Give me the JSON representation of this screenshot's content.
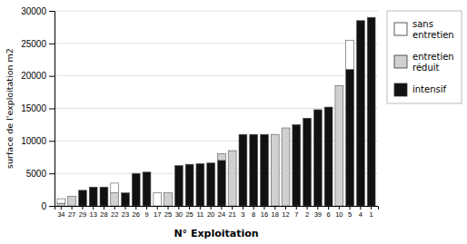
{
  "chart_data": {
    "type": "bar",
    "stacked": true,
    "categories": [
      "34",
      "27",
      "29",
      "13",
      "28",
      "22",
      "23",
      "26",
      "9",
      "17",
      "25",
      "30",
      "25",
      "11",
      "20",
      "24",
      "21",
      "3",
      "8",
      "16",
      "18",
      "12",
      "7",
      "2",
      "39",
      "6",
      "10",
      "5",
      "4",
      "1"
    ],
    "series": [
      {
        "name": "intensif",
        "color": "#111111",
        "values": [
          0,
          0,
          2400,
          2900,
          2900,
          0,
          2000,
          5000,
          5200,
          0,
          0,
          6200,
          6400,
          6500,
          6600,
          7000,
          0,
          11000,
          11000,
          11000,
          0,
          0,
          12500,
          13500,
          14800,
          15200,
          0,
          21000,
          28500,
          29000
        ]
      },
      {
        "name": "entretien\nréduit",
        "color": "#d0d0d0",
        "values": [
          400,
          1500,
          0,
          0,
          0,
          2000,
          0,
          0,
          0,
          0,
          2000,
          0,
          0,
          0,
          0,
          1000,
          8500,
          0,
          0,
          0,
          11000,
          12000,
          0,
          0,
          0,
          0,
          18500,
          0,
          0,
          0
        ]
      },
      {
        "name": "sans\nentretien",
        "color": "#ffffff",
        "values": [
          700,
          0,
          0,
          0,
          0,
          1500,
          0,
          0,
          0,
          2000,
          0,
          0,
          0,
          0,
          0,
          0,
          0,
          0,
          0,
          0,
          0,
          0,
          0,
          0,
          0,
          0,
          0,
          4500,
          0,
          0
        ]
      }
    ],
    "x_label": "N° Exploitation",
    "y_label": "surface de l'exploitation m2",
    "ylim": [
      0,
      30000
    ],
    "yticks": [
      0,
      5000,
      10000,
      15000,
      20000,
      25000,
      30000
    ],
    "grid": true,
    "legend": "right"
  }
}
